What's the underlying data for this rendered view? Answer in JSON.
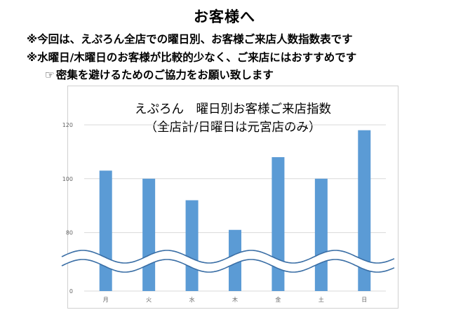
{
  "page": {
    "heading": "お客様へ",
    "notes": [
      "※今回は、えぷろん全店での曜日別、お客様ご来店人数指数表です",
      "※水曜日/木曜日のお客様が比較的少なく、ご来店にはおすすめです",
      "密集を避けるためのご協力をお願い致します"
    ],
    "hand_icon": "☞"
  },
  "chart_data": {
    "type": "bar",
    "title": "えぷろん　曜日別お客様ご来店指数",
    "subtitle": "（全店計/日曜日は元宮店のみ）",
    "categories": [
      "月",
      "火",
      "水",
      "木",
      "金",
      "土",
      "日"
    ],
    "values": [
      103,
      100,
      92,
      81,
      108,
      100,
      118
    ],
    "xlabel": "",
    "ylabel": "",
    "yticks": [
      0,
      80,
      100,
      120
    ],
    "ylim": [
      0,
      120
    ],
    "axis_break": {
      "lower": 0,
      "upper": 70
    },
    "bar_color": "#5b9bd5",
    "grid": true,
    "legend": "none"
  }
}
